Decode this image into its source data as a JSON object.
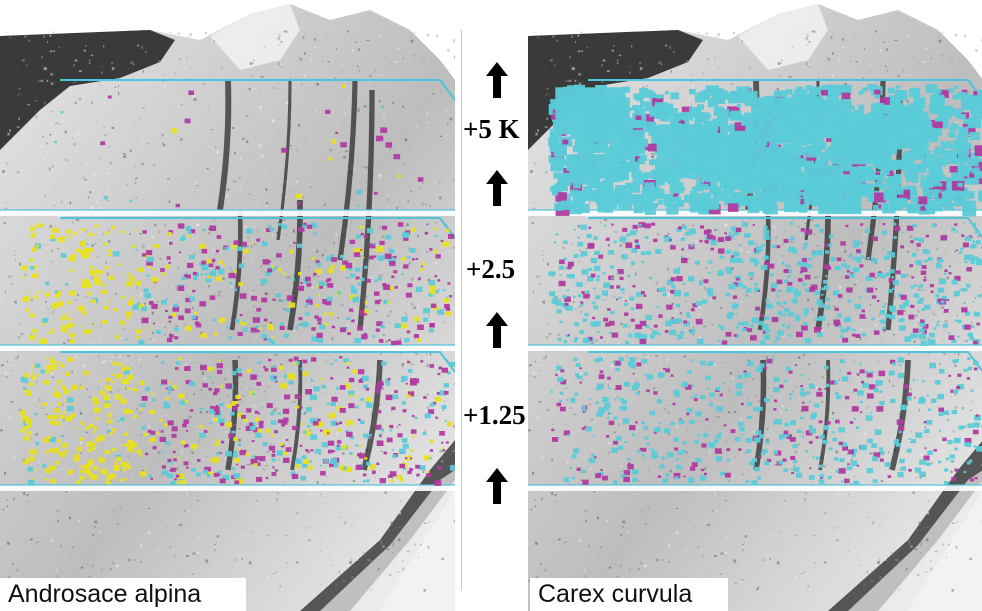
{
  "panels": {
    "left": {
      "species": "Androsace alpina"
    },
    "right": {
      "species": "Carex curvula"
    }
  },
  "warming_steps": [
    "+5 K",
    "+2.5",
    "+1.25"
  ],
  "colors": {
    "band_outline": "#4fc3d9",
    "cyan": "#5bcbd8",
    "magenta": "#b03aa0",
    "yellow": "#e8e020",
    "terrain_light": "#d8d8d8",
    "terrain_dark": "#3a3a3a"
  }
}
